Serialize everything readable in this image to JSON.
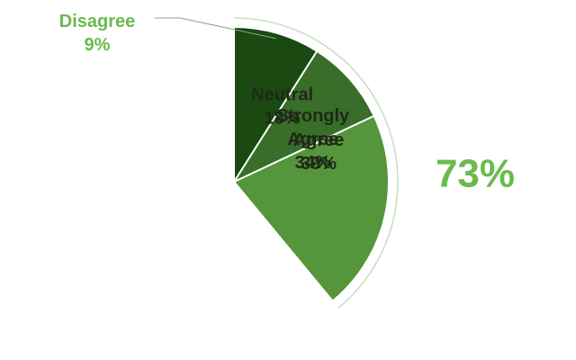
{
  "chart_data": {
    "type": "pie",
    "start_angle_deg": 0,
    "direction": "clockwise",
    "slices": [
      {
        "label": "Strongly Agree",
        "value": 34,
        "value_text": "34%",
        "color": "#6aba4d",
        "text_lines": [
          "Strongly",
          "Agree"
        ]
      },
      {
        "label": "Agree",
        "value": 39,
        "value_text": "39%",
        "color": "#55953c",
        "text_lines": [
          "Agree"
        ]
      },
      {
        "label": "Neutral",
        "value": 18,
        "value_text": "18%",
        "color": "#386e29",
        "text_lines": [
          "Neutral"
        ]
      },
      {
        "label": "Disagree",
        "value": 9,
        "value_text": "9%",
        "color": "#1a4a12",
        "text_lines": [
          "Disagree"
        ],
        "callout": true
      }
    ],
    "highlight": {
      "value_text": "73%",
      "covers": [
        "Strongly Agree",
        "Agree"
      ],
      "color": "#6aba4d",
      "arc_color": "#c9dcc2"
    },
    "callout_label_color": "#6aba4d",
    "slice_border_color": "#ffffff"
  }
}
